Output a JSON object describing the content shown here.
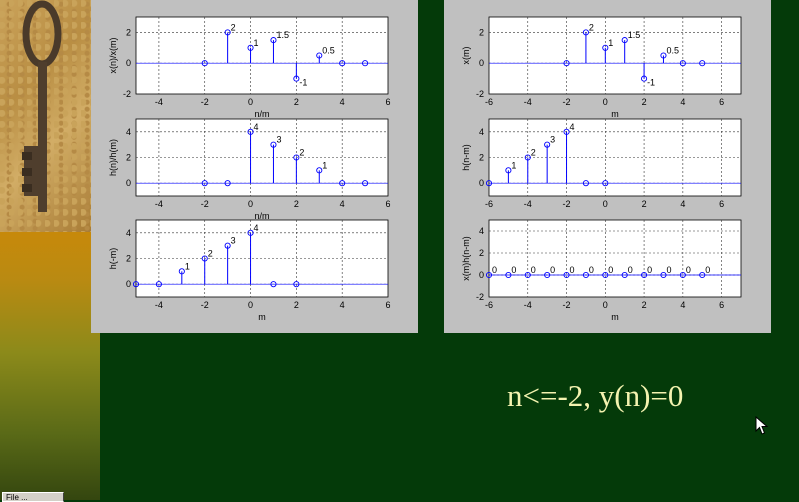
{
  "caption": "n<=-2, y(n)=0",
  "taskbar": {
    "label": "File ..."
  },
  "colors": {
    "stem": "#0000ff",
    "background": "#043a09",
    "caption": "#f4f3b0",
    "panel": "#c0c0c0"
  },
  "chart_data": [
    {
      "panel": "left",
      "type": "stem",
      "ylabel": "x(n)/x(m)",
      "xlabel": "n/m",
      "xlim": [
        -5,
        6
      ],
      "ylim": [
        -2,
        3
      ],
      "xticks": [
        "-4",
        "-2",
        "0",
        "2",
        "4",
        "6"
      ],
      "yticks": [
        "-2",
        "0",
        "2"
      ],
      "points": [
        {
          "x": -2,
          "y": 0,
          "label": ""
        },
        {
          "x": -1,
          "y": 2,
          "label": "2"
        },
        {
          "x": 0,
          "y": 1,
          "label": "1"
        },
        {
          "x": 1,
          "y": 1.5,
          "label": "1.5"
        },
        {
          "x": 2,
          "y": -1,
          "label": "-1"
        },
        {
          "x": 3,
          "y": 0.5,
          "label": "0.5"
        },
        {
          "x": 4,
          "y": 0,
          "label": ""
        },
        {
          "x": 5,
          "y": 0,
          "label": ""
        }
      ]
    },
    {
      "panel": "left",
      "type": "stem",
      "ylabel": "h(n)/h(m)",
      "xlabel": "n/m",
      "xlim": [
        -5,
        6
      ],
      "ylim": [
        -1,
        5
      ],
      "xticks": [
        "-4",
        "-2",
        "0",
        "2",
        "4",
        "6"
      ],
      "yticks": [
        "0",
        "2",
        "4"
      ],
      "points": [
        {
          "x": -2,
          "y": 0,
          "label": ""
        },
        {
          "x": -1,
          "y": 0,
          "label": ""
        },
        {
          "x": 0,
          "y": 4,
          "label": "4"
        },
        {
          "x": 1,
          "y": 3,
          "label": "3"
        },
        {
          "x": 2,
          "y": 2,
          "label": "2"
        },
        {
          "x": 3,
          "y": 1,
          "label": "1"
        },
        {
          "x": 4,
          "y": 0,
          "label": ""
        },
        {
          "x": 5,
          "y": 0,
          "label": ""
        }
      ]
    },
    {
      "panel": "left",
      "type": "stem",
      "ylabel": "h(-m)",
      "xlabel": "m",
      "xlim": [
        -5,
        6
      ],
      "ylim": [
        -1,
        5
      ],
      "xticks": [
        "-4",
        "-2",
        "0",
        "2",
        "4",
        "6"
      ],
      "yticks": [
        "0",
        "2",
        "4"
      ],
      "points": [
        {
          "x": -5,
          "y": 0,
          "label": ""
        },
        {
          "x": -4,
          "y": 0,
          "label": ""
        },
        {
          "x": -3,
          "y": 1,
          "label": "1"
        },
        {
          "x": -2,
          "y": 2,
          "label": "2"
        },
        {
          "x": -1,
          "y": 3,
          "label": "3"
        },
        {
          "x": 0,
          "y": 4,
          "label": "4"
        },
        {
          "x": 1,
          "y": 0,
          "label": ""
        },
        {
          "x": 2,
          "y": 0,
          "label": ""
        }
      ]
    },
    {
      "panel": "right",
      "type": "stem",
      "ylabel": "x(m)",
      "xlabel": "m",
      "xlim": [
        -6,
        7
      ],
      "ylim": [
        -2,
        3
      ],
      "xticks": [
        "-6",
        "-4",
        "-2",
        "0",
        "2",
        "4",
        "6"
      ],
      "yticks": [
        "-2",
        "0",
        "2"
      ],
      "points": [
        {
          "x": -2,
          "y": 0,
          "label": ""
        },
        {
          "x": -1,
          "y": 2,
          "label": "2"
        },
        {
          "x": 0,
          "y": 1,
          "label": "1"
        },
        {
          "x": 1,
          "y": 1.5,
          "label": "1.5"
        },
        {
          "x": 2,
          "y": -1,
          "label": "-1"
        },
        {
          "x": 3,
          "y": 0.5,
          "label": "0.5"
        },
        {
          "x": 4,
          "y": 0,
          "label": ""
        },
        {
          "x": 5,
          "y": 0,
          "label": ""
        }
      ]
    },
    {
      "panel": "right",
      "type": "stem",
      "ylabel": "h(n-m)",
      "xlabel": "",
      "xlim": [
        -6,
        7
      ],
      "ylim": [
        -1,
        5
      ],
      "xticks": [
        "-6",
        "-4",
        "-2",
        "0",
        "2",
        "4",
        "6"
      ],
      "yticks": [
        "0",
        "2",
        "4"
      ],
      "points": [
        {
          "x": -6,
          "y": 0,
          "label": ""
        },
        {
          "x": -5,
          "y": 1,
          "label": "1"
        },
        {
          "x": -4,
          "y": 2,
          "label": "2"
        },
        {
          "x": -3,
          "y": 3,
          "label": "3"
        },
        {
          "x": -2,
          "y": 4,
          "label": "4"
        },
        {
          "x": -1,
          "y": 0,
          "label": ""
        },
        {
          "x": 0,
          "y": 0,
          "label": ""
        }
      ]
    },
    {
      "panel": "right",
      "type": "stem",
      "ylabel": "x(m)h(n-m)",
      "xlabel": "m",
      "xlim": [
        -6,
        7
      ],
      "ylim": [
        -2,
        5
      ],
      "xticks": [
        "-6",
        "-4",
        "-2",
        "0",
        "2",
        "4",
        "6"
      ],
      "yticks": [
        "-2",
        "0",
        "2",
        "4"
      ],
      "points": [
        {
          "x": -6,
          "y": 0,
          "label": "0"
        },
        {
          "x": -5,
          "y": 0,
          "label": "0"
        },
        {
          "x": -4,
          "y": 0,
          "label": "0"
        },
        {
          "x": -3,
          "y": 0,
          "label": "0"
        },
        {
          "x": -2,
          "y": 0,
          "label": "0"
        },
        {
          "x": -1,
          "y": 0,
          "label": "0"
        },
        {
          "x": 0,
          "y": 0,
          "label": "0"
        },
        {
          "x": 1,
          "y": 0,
          "label": "0"
        },
        {
          "x": 2,
          "y": 0,
          "label": "0"
        },
        {
          "x": 3,
          "y": 0,
          "label": "0"
        },
        {
          "x": 4,
          "y": 0,
          "label": "0"
        },
        {
          "x": 5,
          "y": 0,
          "label": "0"
        }
      ]
    }
  ]
}
